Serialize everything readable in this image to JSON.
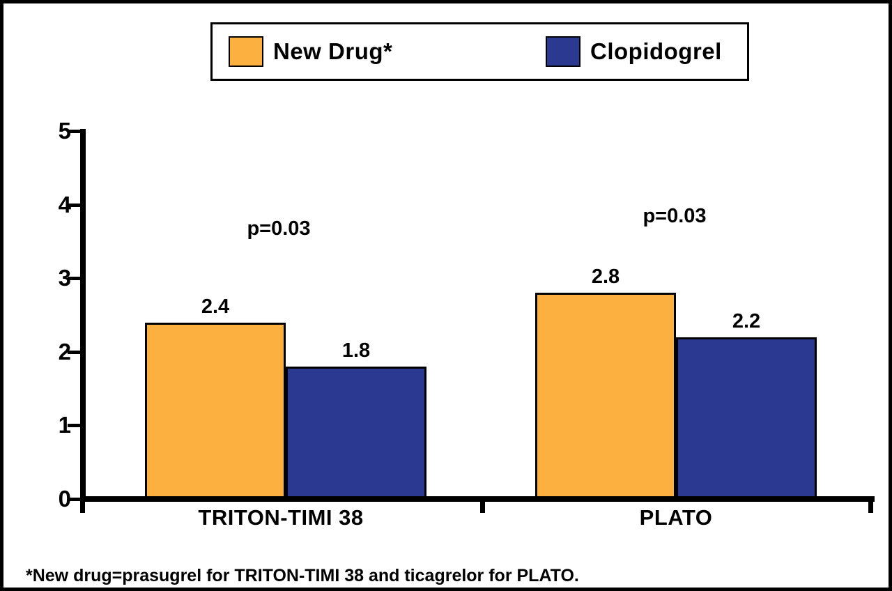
{
  "legend": {
    "items": [
      {
        "label": "New Drug*",
        "color": "#FBB040"
      },
      {
        "label": "Clopidogrel",
        "color": "#2B3990"
      }
    ]
  },
  "footnote": "*New drug=prasugrel for TRITON-TIMI 38 and ticagrelor for PLATO.",
  "chart_data": {
    "type": "bar",
    "title": "",
    "xlabel": "",
    "ylabel": "",
    "categories": [
      "TRITON-TIMI 38",
      "PLATO"
    ],
    "series": [
      {
        "name": "New Drug*",
        "color": "#FBB040",
        "values": [
          2.4,
          2.8
        ]
      },
      {
        "name": "Clopidogrel",
        "color": "#2B3990",
        "values": [
          1.8,
          2.2
        ]
      }
    ],
    "bar_value_labels": [
      [
        "2.4",
        "1.8"
      ],
      [
        "2.8",
        "2.2"
      ]
    ],
    "annotations": [
      {
        "text": "p=0.03",
        "category_index": 0
      },
      {
        "text": "p=0.03",
        "category_index": 1
      }
    ],
    "ylim": [
      0,
      5
    ],
    "ytick_step": 1,
    "ytick_labels": [
      "0",
      "1",
      "2",
      "3",
      "4",
      "5"
    ],
    "grid": false,
    "legend_position": "top",
    "bar_edge_color": "#000000",
    "axis_color": "#000000"
  }
}
